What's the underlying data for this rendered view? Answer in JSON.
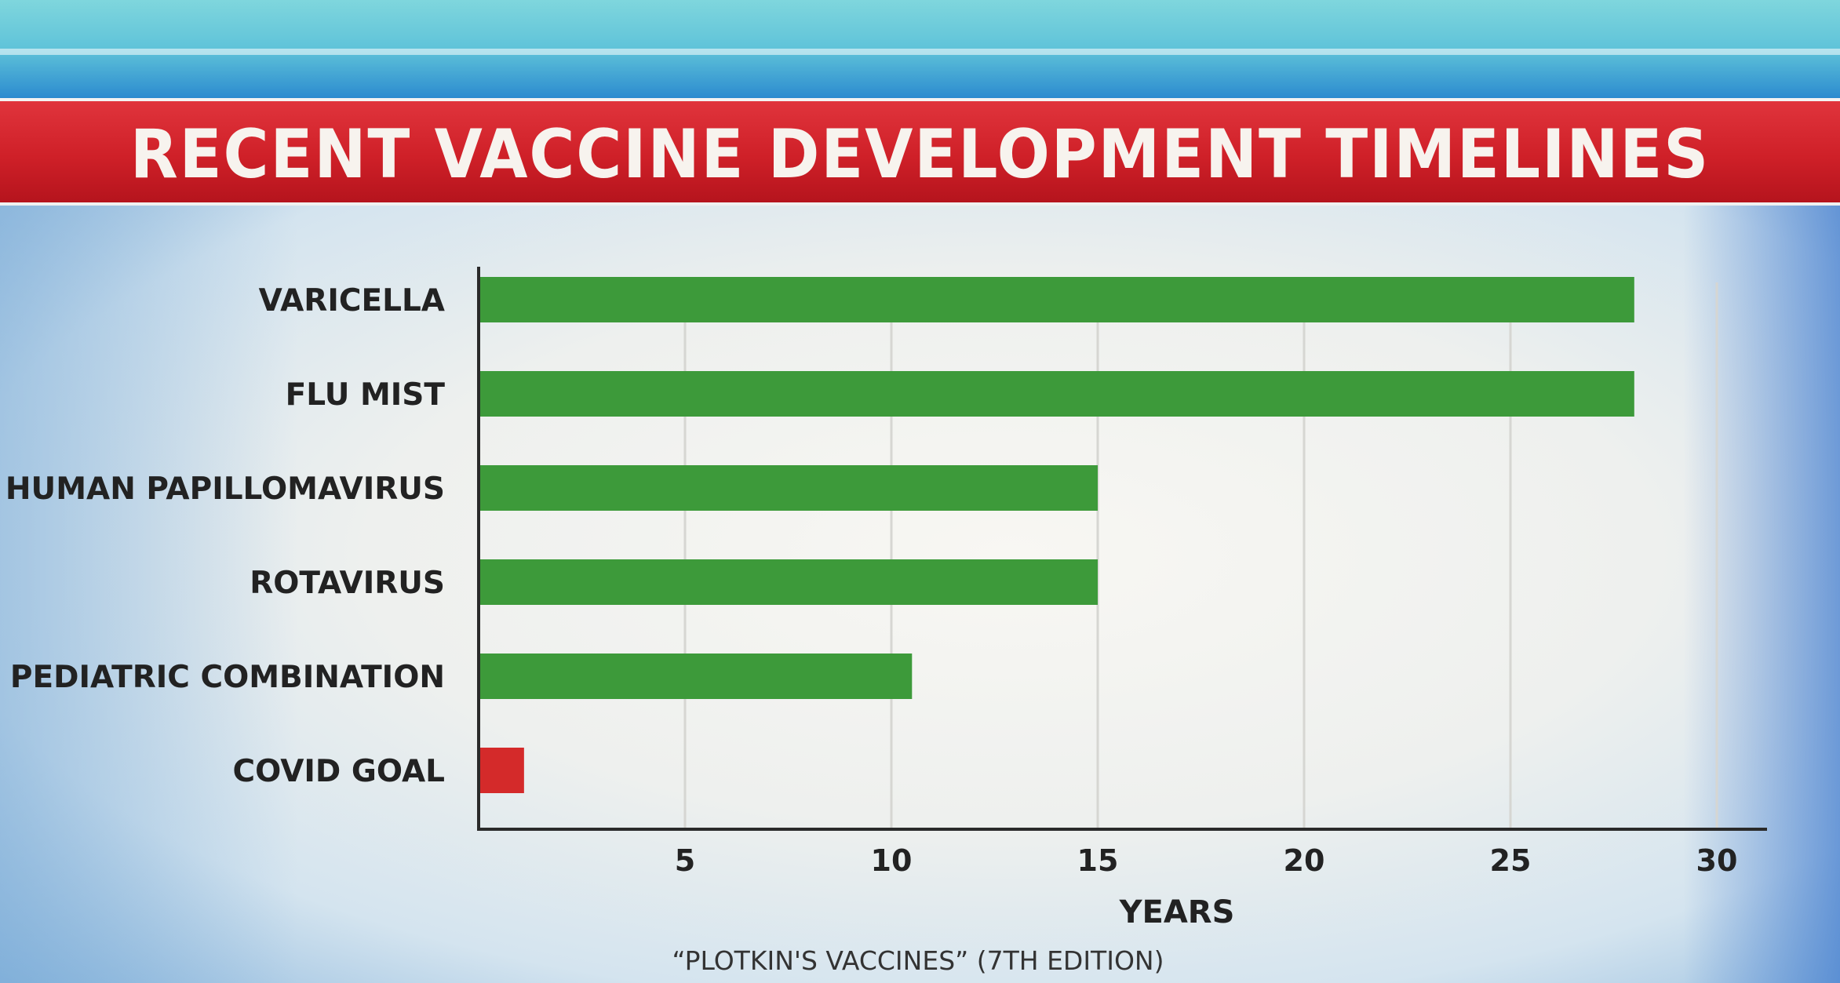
{
  "chart_data": {
    "type": "bar",
    "orientation": "horizontal",
    "title": "RECENT VACCINE DEVELOPMENT TIMELINES",
    "categories": [
      "VARICELLA",
      "FLU MIST",
      "HUMAN PAPILLOMAVIRUS",
      "ROTAVIRUS",
      "PEDIATRIC COMBINATION",
      "COVID GOAL"
    ],
    "values": [
      28,
      28,
      15,
      15,
      10.5,
      1.1
    ],
    "bar_colors": [
      "#3d9a3a",
      "#3d9a3a",
      "#3d9a3a",
      "#3d9a3a",
      "#3d9a3a",
      "#d42a2a"
    ],
    "xlabel": "YEARS",
    "ylabel": "",
    "xticks": [
      5,
      10,
      15,
      20,
      25,
      30
    ],
    "xlim": [
      0,
      30
    ],
    "grid": "vertical",
    "source": "“PLOTKIN'S VACCINES” (7TH EDITION)"
  }
}
